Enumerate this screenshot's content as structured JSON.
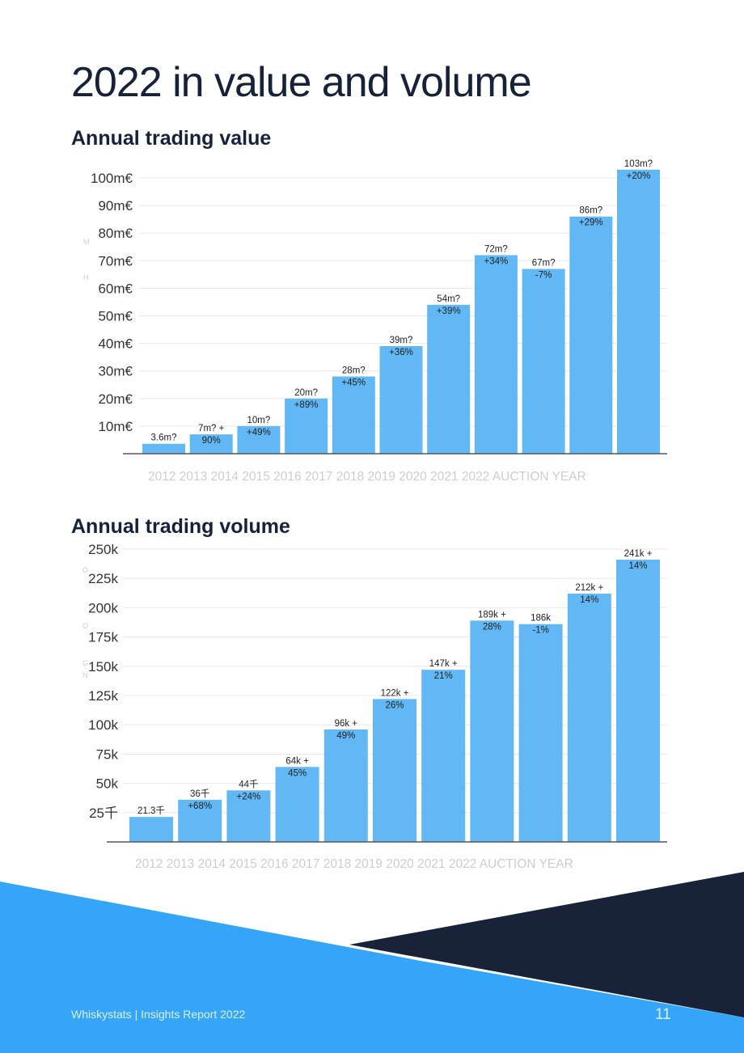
{
  "page": {
    "title": "2022 in value and volume",
    "footer": "Whiskystats | Insights Report 2022",
    "page_number": "11"
  },
  "colors": {
    "bar": "#61b8f5",
    "grid": "#e4e8ec",
    "axis": "#555555",
    "title": "#16213a",
    "light_label": "#c9ced4",
    "light_blue": "#35a5f8",
    "navy": "#182239"
  },
  "chart_data": [
    {
      "type": "bar",
      "title": "Annual trading value",
      "categories": [
        "2012",
        "2013",
        "2014",
        "2015",
        "2016",
        "2017",
        "2018",
        "2019",
        "2020",
        "2021",
        "2022"
      ],
      "values": [
        3.6,
        7,
        10,
        20,
        28,
        39,
        54,
        72,
        67,
        86,
        103
      ],
      "data_labels": [
        [
          "3.6m?",
          ""
        ],
        [
          "7m? +",
          "90%"
        ],
        [
          "10m?",
          "+49%"
        ],
        [
          "20m?",
          "+89%"
        ],
        [
          "28m?",
          "+45%"
        ],
        [
          "39m?",
          "+36%"
        ],
        [
          "54m?",
          "+39%"
        ],
        [
          "72m?",
          "+34%"
        ],
        [
          "67m?",
          "-7%"
        ],
        [
          "86m?",
          "+29%"
        ],
        [
          "103m?",
          "+20%"
        ]
      ],
      "xlabel": "2012 2013 2014 2015 2016 2017 2018 2019 2020 2021 2022 AUCTION YEAR",
      "ylim": [
        0,
        100
      ],
      "yticks": [
        10,
        20,
        30,
        40,
        50,
        60,
        70,
        80,
        90,
        100
      ],
      "ytick_labels": [
        "10m€",
        "20m€",
        "30m€",
        "40m€",
        "50m€",
        "60m€",
        "70m€",
        "80m€",
        "90m€",
        "100m€"
      ],
      "ylabel_fragments": [
        "M",
        "H"
      ],
      "grid": true,
      "legend": "none"
    },
    {
      "type": "bar",
      "title": "Annual trading volume",
      "categories": [
        "2012",
        "2013",
        "2014",
        "2015",
        "2016",
        "2017",
        "2018",
        "2019",
        "2020",
        "2021",
        "2022"
      ],
      "values": [
        21.3,
        36,
        44,
        64,
        96,
        122,
        147,
        189,
        186,
        212,
        241
      ],
      "data_labels": [
        [
          "21.3千",
          ""
        ],
        [
          "36千",
          "+68%"
        ],
        [
          "44千",
          "+24%"
        ],
        [
          "64k +",
          "45%"
        ],
        [
          "96k +",
          "49%"
        ],
        [
          "122k +",
          "26%"
        ],
        [
          "147k +",
          "21%"
        ],
        [
          "189k +",
          "28%"
        ],
        [
          "186k",
          "-1%"
        ],
        [
          "212k +",
          "14%"
        ],
        [
          "241k +",
          "14%"
        ]
      ],
      "xlabel": "2012 2013 2014 2015 2016 2017 2018 2019 2020 2021 2022 AUCTION YEAR",
      "ylim": [
        0,
        250
      ],
      "yticks": [
        25,
        50,
        75,
        100,
        125,
        150,
        175,
        200,
        225,
        250
      ],
      "ytick_labels": [
        "25千",
        "50k",
        "75k",
        "100k",
        "125k",
        "150k",
        "175k",
        "200k",
        "225k",
        "250k"
      ],
      "ylabel_fragments": [
        "O",
        "O",
        "G",
        "N"
      ],
      "grid": true,
      "legend": "none"
    }
  ]
}
